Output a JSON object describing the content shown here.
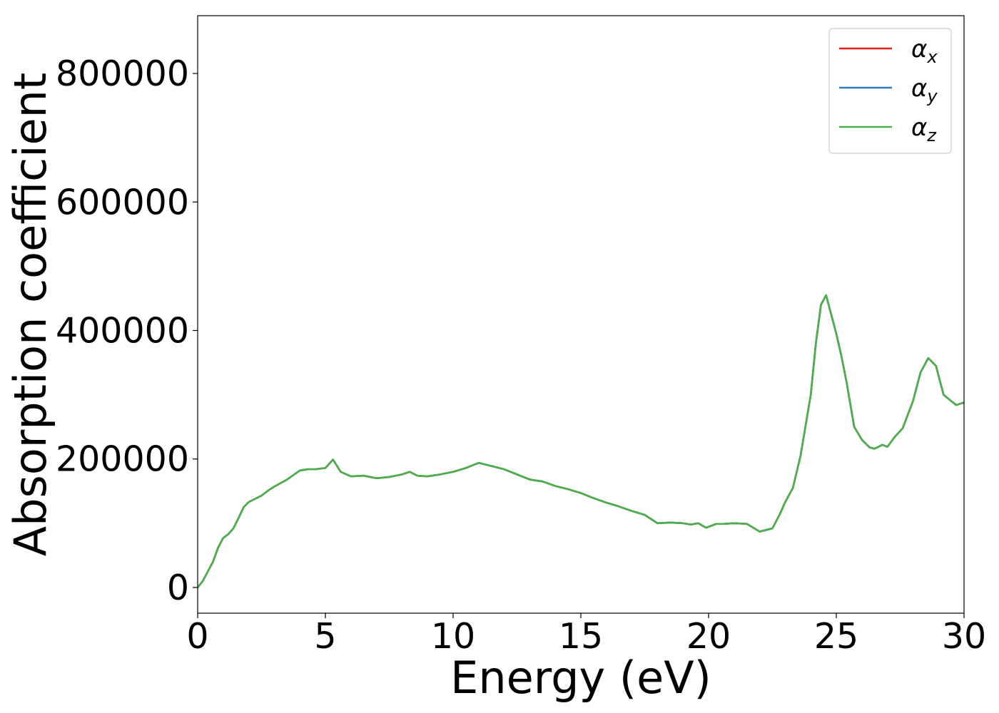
{
  "chart_data": {
    "type": "line",
    "title": "",
    "xlabel": "Energy (eV)",
    "ylabel": "Absorption coefficient",
    "xlim": [
      0,
      30
    ],
    "ylim": [
      -40000,
      890000
    ],
    "grid": false,
    "legend_position": "top-right",
    "x_ticks": [
      {
        "value": 0,
        "label": "0"
      },
      {
        "value": 5,
        "label": "5"
      },
      {
        "value": 10,
        "label": "10"
      },
      {
        "value": 15,
        "label": "15"
      },
      {
        "value": 20,
        "label": "20"
      },
      {
        "value": 25,
        "label": "25"
      },
      {
        "value": 30,
        "label": "30"
      }
    ],
    "y_ticks": [
      {
        "value": 0,
        "label": "0"
      },
      {
        "value": 200000,
        "label": "200000"
      },
      {
        "value": 400000,
        "label": "400000"
      },
      {
        "value": 600000,
        "label": "600000"
      },
      {
        "value": 800000,
        "label": "800000"
      }
    ],
    "x": [
      0,
      0.2,
      0.4,
      0.6,
      0.8,
      1.0,
      1.2,
      1.4,
      1.6,
      1.8,
      2.0,
      2.2,
      2.5,
      2.8,
      3.0,
      3.5,
      4.0,
      4.3,
      4.6,
      5.0,
      5.3,
      5.6,
      6.0,
      6.5,
      7.0,
      7.5,
      8.0,
      8.3,
      8.6,
      9.0,
      9.5,
      10.0,
      10.5,
      11.0,
      11.5,
      12.0,
      12.5,
      13.0,
      13.5,
      14.0,
      14.5,
      15.0,
      15.5,
      16.0,
      16.5,
      17.0,
      17.5,
      18.0,
      18.5,
      19.0,
      19.3,
      19.6,
      19.9,
      20.3,
      20.6,
      21.0,
      21.5,
      22.0,
      22.5,
      22.8,
      23.0,
      23.3,
      23.6,
      24.0,
      24.2,
      24.4,
      24.6,
      24.8,
      25.0,
      25.2,
      25.4,
      25.7,
      26.0,
      26.3,
      26.5,
      26.8,
      27.0,
      27.3,
      27.6,
      28.0,
      28.3,
      28.6,
      28.9,
      29.2,
      29.5,
      29.7,
      30.0
    ],
    "series": [
      {
        "name": "αx",
        "label_main": "α",
        "label_sub": "x",
        "color": "#e41a1c",
        "values": [
          0,
          10000,
          25000,
          40000,
          62000,
          77000,
          83000,
          92000,
          108000,
          125000,
          133000,
          137000,
          143000,
          152000,
          157000,
          168000,
          182000,
          184000,
          184000,
          186000,
          199000,
          180000,
          173000,
          174000,
          170000,
          172000,
          176000,
          180000,
          174000,
          173000,
          176000,
          180000,
          186000,
          194000,
          189000,
          184000,
          176000,
          168000,
          165000,
          158000,
          153000,
          147000,
          139000,
          132000,
          126000,
          119000,
          113000,
          100000,
          101000,
          100000,
          98000,
          100000,
          93000,
          99000,
          99000,
          100000,
          99000,
          87000,
          92000,
          115000,
          133000,
          155000,
          205000,
          300000,
          380000,
          440000,
          455000,
          425000,
          395000,
          360000,
          320000,
          250000,
          230000,
          218000,
          216000,
          222000,
          219000,
          235000,
          248000,
          290000,
          335000,
          357000,
          345000,
          300000,
          290000,
          284000,
          288000
        ]
      },
      {
        "name": "αy",
        "label_main": "α",
        "label_sub": "y",
        "color": "#377eb8",
        "values": [
          0,
          10000,
          25000,
          40000,
          62000,
          77000,
          83000,
          92000,
          108000,
          125000,
          133000,
          137000,
          143000,
          152000,
          157000,
          168000,
          182000,
          184000,
          184000,
          186000,
          199000,
          180000,
          173000,
          174000,
          170000,
          172000,
          176000,
          180000,
          174000,
          173000,
          176000,
          180000,
          186000,
          194000,
          189000,
          184000,
          176000,
          168000,
          165000,
          158000,
          153000,
          147000,
          139000,
          132000,
          126000,
          119000,
          113000,
          100000,
          101000,
          100000,
          98000,
          100000,
          93000,
          99000,
          99000,
          100000,
          99000,
          87000,
          92000,
          115000,
          133000,
          155000,
          205000,
          300000,
          380000,
          440000,
          455000,
          425000,
          395000,
          360000,
          320000,
          250000,
          230000,
          218000,
          216000,
          222000,
          219000,
          235000,
          248000,
          290000,
          335000,
          357000,
          345000,
          300000,
          290000,
          284000,
          288000
        ]
      },
      {
        "name": "αz",
        "label_main": "α",
        "label_sub": "z",
        "color": "#4daf4a",
        "values": [
          0,
          10000,
          25000,
          40000,
          62000,
          77000,
          83000,
          92000,
          108000,
          125000,
          133000,
          137000,
          143000,
          152000,
          157000,
          168000,
          182000,
          184000,
          184000,
          186000,
          199000,
          180000,
          173000,
          174000,
          170000,
          172000,
          176000,
          180000,
          174000,
          173000,
          176000,
          180000,
          186000,
          194000,
          189000,
          184000,
          176000,
          168000,
          165000,
          158000,
          153000,
          147000,
          139000,
          132000,
          126000,
          119000,
          113000,
          100000,
          101000,
          100000,
          98000,
          100000,
          93000,
          99000,
          99000,
          100000,
          99000,
          87000,
          92000,
          115000,
          133000,
          155000,
          205000,
          300000,
          380000,
          440000,
          455000,
          425000,
          395000,
          360000,
          320000,
          250000,
          230000,
          218000,
          216000,
          222000,
          219000,
          235000,
          248000,
          290000,
          335000,
          357000,
          345000,
          300000,
          290000,
          284000,
          288000
        ]
      }
    ]
  }
}
